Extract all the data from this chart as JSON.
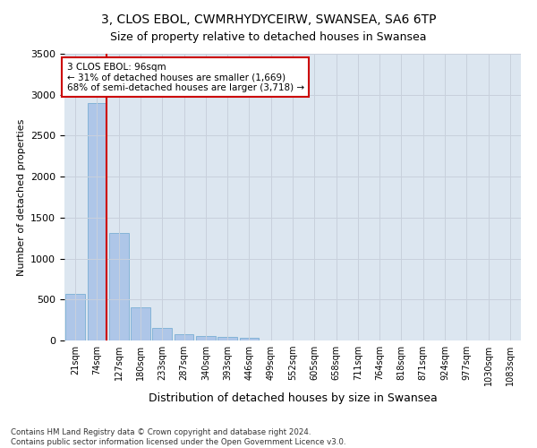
{
  "title": "3, CLOS EBOL, CWMRHYDYCEIRW, SWANSEA, SA6 6TP",
  "subtitle": "Size of property relative to detached houses in Swansea",
  "xlabel": "Distribution of detached houses by size in Swansea",
  "ylabel": "Number of detached properties",
  "categories": [
    "21sqm",
    "74sqm",
    "127sqm",
    "180sqm",
    "233sqm",
    "287sqm",
    "340sqm",
    "393sqm",
    "446sqm",
    "499sqm",
    "552sqm",
    "605sqm",
    "658sqm",
    "711sqm",
    "764sqm",
    "818sqm",
    "871sqm",
    "924sqm",
    "977sqm",
    "1030sqm",
    "1083sqm"
  ],
  "values": [
    570,
    2900,
    1310,
    410,
    155,
    80,
    55,
    45,
    38,
    0,
    0,
    0,
    0,
    0,
    0,
    0,
    0,
    0,
    0,
    0,
    0
  ],
  "bar_color": "#aec6e8",
  "bar_edge_color": "#7bafd4",
  "vline_color": "#cc0000",
  "vline_pos": 1.43,
  "annotation_text": "3 CLOS EBOL: 96sqm\n← 31% of detached houses are smaller (1,669)\n68% of semi-detached houses are larger (3,718) →",
  "annotation_box_color": "#ffffff",
  "annotation_box_edge": "#cc0000",
  "ylim": [
    0,
    3500
  ],
  "yticks": [
    0,
    500,
    1000,
    1500,
    2000,
    2500,
    3000,
    3500
  ],
  "grid_color": "#c8d0dc",
  "bg_color": "#dce6f0",
  "footer": "Contains HM Land Registry data © Crown copyright and database right 2024.\nContains public sector information licensed under the Open Government Licence v3.0.",
  "title_fontsize": 10,
  "subtitle_fontsize": 9,
  "figsize": [
    6.0,
    5.0
  ],
  "dpi": 100
}
